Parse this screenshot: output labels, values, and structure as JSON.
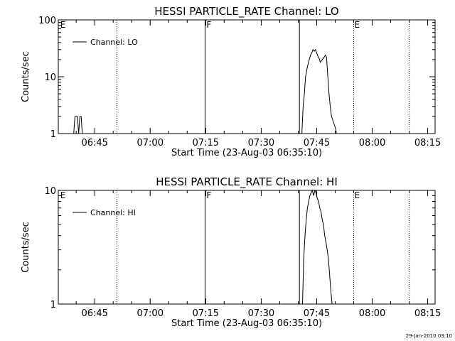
{
  "chart_data": [
    {
      "type": "line",
      "title": "HESSI PARTICLE_RATE Channel: LO",
      "xlabel": "Start Time (23-Aug-03 06:35:10)",
      "ylabel": "Counts/sec",
      "yscale": "log",
      "ylim": [
        1,
        100
      ],
      "y_ticks": [
        "1",
        "10",
        "100"
      ],
      "xlim": [
        "06:35:10",
        "08:17:00"
      ],
      "x_ticks": [
        "06:45",
        "07:00",
        "07:15",
        "07:30",
        "07:45",
        "08:00",
        "08:15"
      ],
      "legend": "top-left",
      "series": [
        {
          "name": "Channel: LO",
          "x": [
            "06:39:20",
            "06:39:40",
            "06:40:00",
            "06:40:20",
            "06:40:40",
            "06:41:00",
            "06:41:20",
            "06:41:40",
            "07:41:00",
            "07:41:20",
            "07:41:40",
            "07:42:00",
            "07:42:30",
            "07:43:00",
            "07:43:20",
            "07:43:40",
            "07:44:00",
            "07:44:20",
            "07:44:40",
            "07:45:00",
            "07:45:20",
            "07:45:40",
            "07:46:00",
            "07:46:30",
            "07:47:00",
            "07:47:20",
            "07:47:40",
            "07:48:00",
            "07:48:20",
            "07:48:40",
            "07:49:00",
            "07:49:40",
            "07:50:10",
            "07:50:20"
          ],
          "values": [
            1,
            2,
            2,
            2,
            1,
            2,
            2,
            1,
            1,
            3,
            5,
            10,
            15,
            20,
            24,
            26,
            30,
            28,
            30,
            26,
            23,
            21,
            18,
            20,
            22,
            24,
            22,
            10,
            5,
            3,
            2,
            1.5,
            1.2,
            1
          ]
        }
      ],
      "annotations": [
        {
          "text": "E",
          "x": "06:35:30"
        },
        {
          "text": "F",
          "x": "07:15:00"
        },
        {
          "text": "E",
          "x": "07:55:00"
        }
      ],
      "vlines_dotted": [
        "06:51:00",
        "08:10:00",
        "07:55:00"
      ],
      "vlines_solid": [
        "07:14:50",
        "07:40:20"
      ]
    },
    {
      "type": "line",
      "title": "HESSI PARTICLE_RATE Channel: HI",
      "xlabel": "Start Time (23-Aug-03 06:35:10)",
      "ylabel": "Counts/sec",
      "yscale": "log",
      "ylim": [
        1,
        10
      ],
      "y_ticks": [
        "1",
        "10"
      ],
      "xlim": [
        "06:35:10",
        "08:17:00"
      ],
      "x_ticks": [
        "06:45",
        "07:00",
        "07:15",
        "07:30",
        "07:45",
        "08:00",
        "08:15"
      ],
      "legend": "top-left",
      "series": [
        {
          "name": "Channel: HI",
          "x": [
            "07:41:10",
            "07:41:30",
            "07:41:50",
            "07:42:10",
            "07:42:30",
            "07:42:50",
            "07:43:10",
            "07:43:30",
            "07:43:50",
            "07:44:10",
            "07:44:30",
            "07:44:50",
            "07:45:10",
            "07:45:30",
            "07:45:50",
            "07:46:10",
            "07:46:30",
            "07:46:50",
            "07:47:10",
            "07:47:30",
            "07:47:50",
            "07:48:10",
            "07:48:30",
            "07:48:50",
            "07:49:10"
          ],
          "values": [
            1,
            2.5,
            4,
            5.5,
            7,
            8,
            9,
            9.5,
            10,
            9,
            10,
            9.5,
            8.5,
            8,
            7,
            6.5,
            5.5,
            5,
            4,
            3.5,
            3,
            2.5,
            1.8,
            1.3,
            1
          ]
        }
      ],
      "annotations": [
        {
          "text": "E",
          "x": "06:35:30"
        },
        {
          "text": "F",
          "x": "07:15:00"
        },
        {
          "text": "E",
          "x": "07:55:00"
        }
      ],
      "vlines_dotted": [
        "06:51:00",
        "08:10:00",
        "07:55:00"
      ],
      "vlines_solid": [
        "07:14:50",
        "07:40:20"
      ]
    }
  ],
  "footer": {
    "timestamp": "29-Jan-2010 03:10"
  }
}
